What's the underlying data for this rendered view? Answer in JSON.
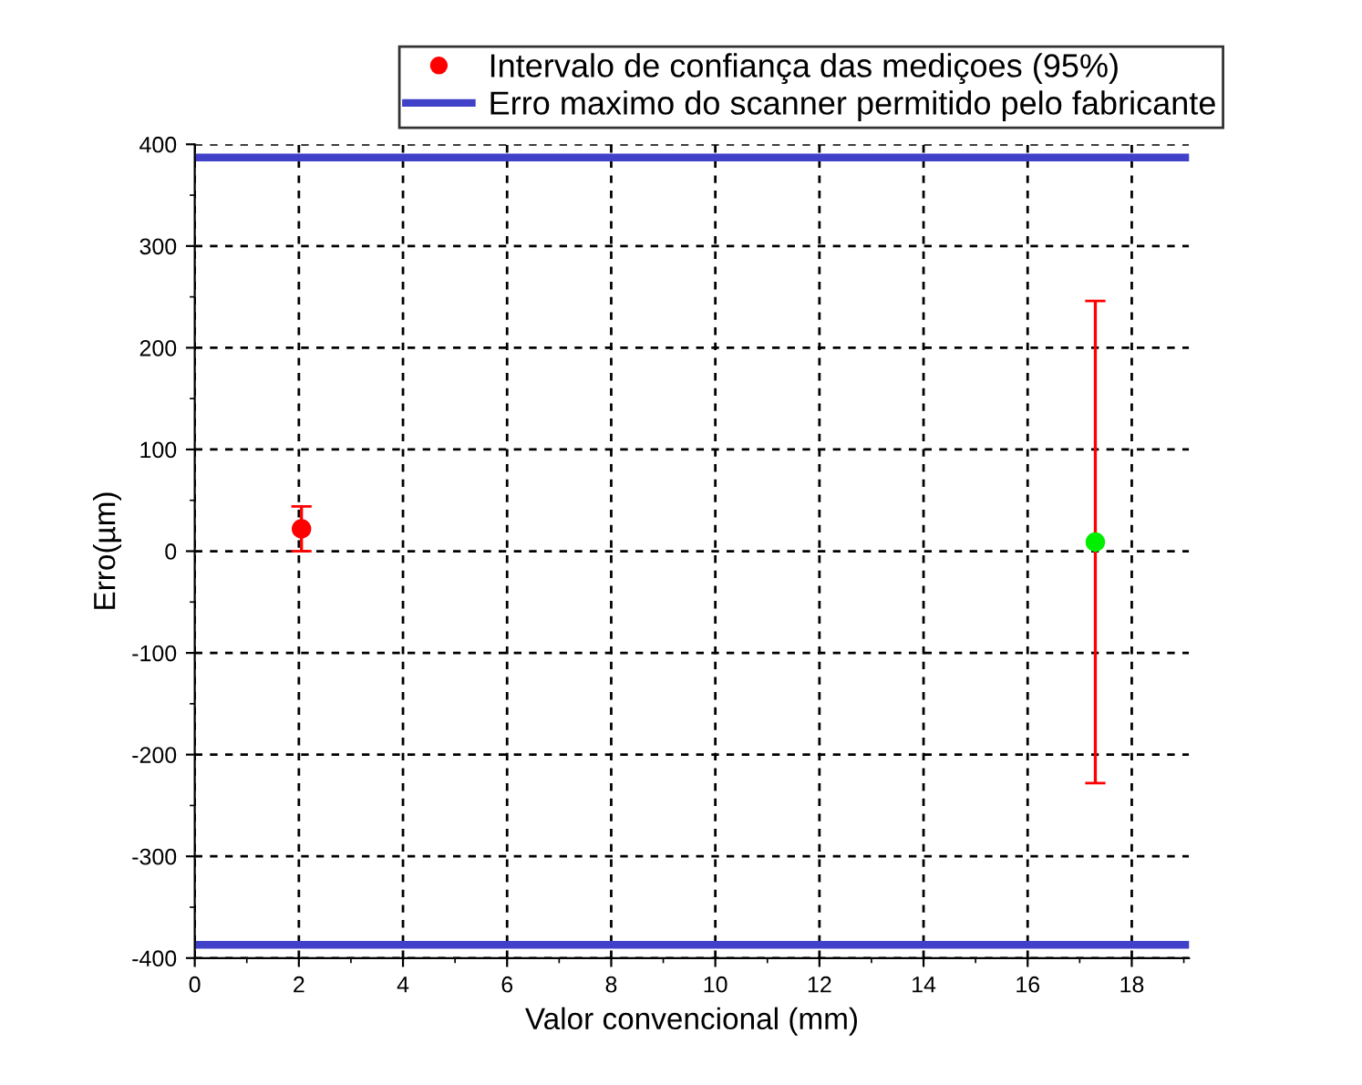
{
  "chart_data": {
    "type": "scatter",
    "xlabel": "Valor convencional (mm)",
    "ylabel": "Erro(µm)",
    "xlim": [
      0,
      19.1
    ],
    "xticks": [
      0,
      2,
      4,
      6,
      8,
      10,
      12,
      14,
      16,
      18
    ],
    "ylim": [
      -400,
      400
    ],
    "yticks": [
      -400,
      -300,
      -200,
      -100,
      0,
      100,
      200,
      300,
      400
    ],
    "series": [
      {
        "name": "Intervalo de confiança das mediçoes (95%)",
        "x": [
          2.05,
          17.3
        ],
        "values": [
          22,
          9
        ],
        "errors": [
          22,
          237
        ],
        "colors": [
          "#ff0000",
          "#00ee00"
        ],
        "color": "#ff0000"
      }
    ],
    "ref_lines": [
      {
        "axis": "y",
        "value": 387,
        "label": "Erro maximo do scanner permitido pelo fabricante",
        "color": "#4040c8"
      },
      {
        "axis": "y",
        "value": -387,
        "color": "#4040c8"
      }
    ],
    "grid": true,
    "legend": "top",
    "marker": "circle"
  }
}
